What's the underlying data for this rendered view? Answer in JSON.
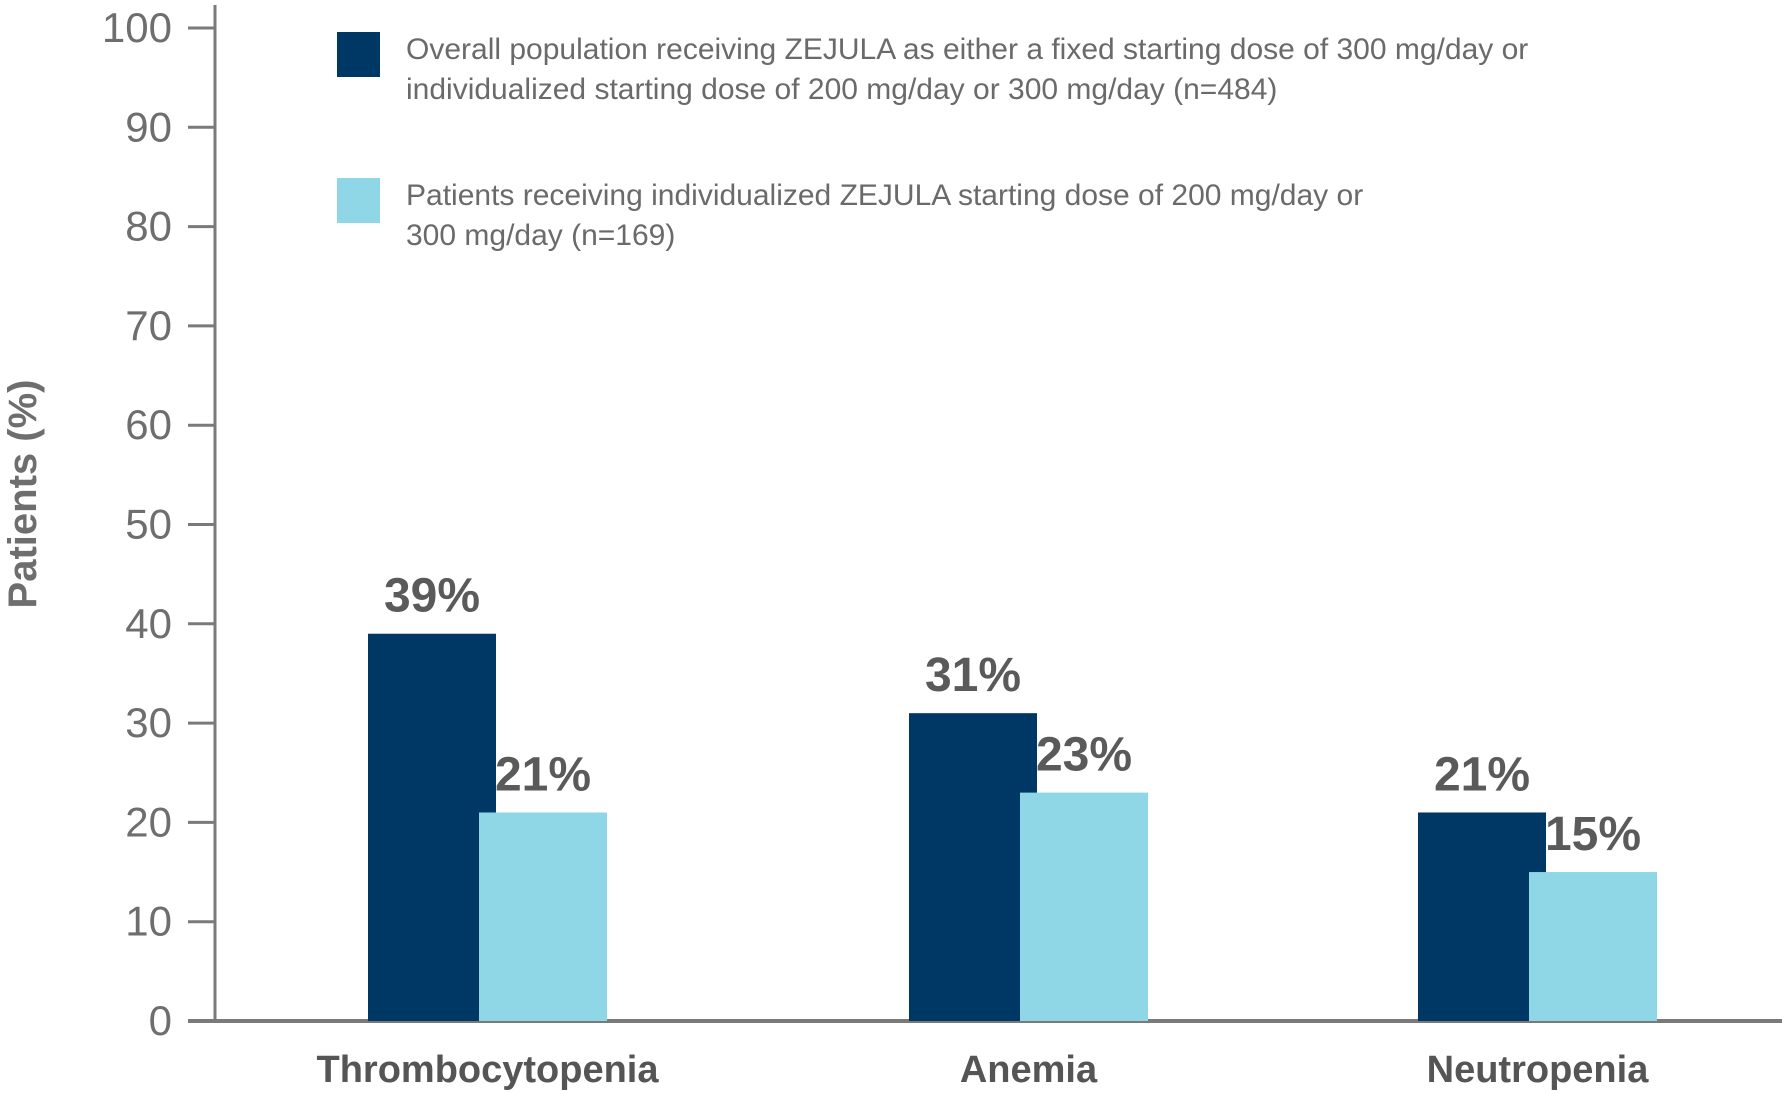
{
  "chart_data": {
    "type": "bar",
    "categories": [
      "Thrombocytopenia",
      "Anemia",
      "Neutropenia"
    ],
    "series": [
      {
        "name": "Overall population receiving ZEJULA as either a fixed starting dose of 300 mg/day or individualized starting dose of 200 mg/day or 300 mg/day (n=484)",
        "legend_lines": [
          "Overall population receiving ZEJULA as either a fixed starting dose of 300 mg/day or",
          "individualized starting dose of 200 mg/day or 300 mg/day (n=484)"
        ],
        "color": "#003865",
        "values": [
          39,
          31,
          21
        ],
        "labels": [
          "39%",
          "31%",
          "21%"
        ]
      },
      {
        "name": "Patients receiving individualized ZEJULA starting dose of 200 mg/day or 300 mg/day (n=169)",
        "legend_lines": [
          "Patients receiving individualized ZEJULA starting dose of 200 mg/day or",
          "300 mg/day (n=169)"
        ],
        "color": "#8fd6e6",
        "values": [
          21,
          23,
          15
        ],
        "labels": [
          "21%",
          "23%",
          "15%"
        ]
      }
    ],
    "title": "",
    "xlabel": "",
    "ylabel": "Patients (%)",
    "ylim": [
      0,
      100
    ],
    "yticks": [
      "0",
      "10",
      "20",
      "30",
      "40",
      "50",
      "60",
      "70",
      "80",
      "90",
      "100"
    ],
    "grid": false,
    "legend_position": "top"
  }
}
